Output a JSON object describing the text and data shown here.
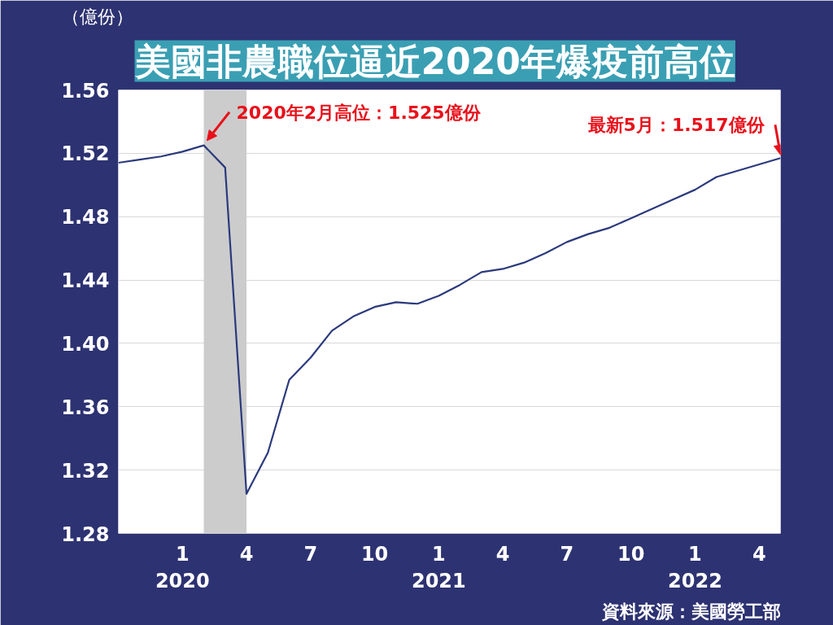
{
  "chart_data": {
    "type": "line",
    "title": "美國非農職位逼近2020年爆疫前高位",
    "ylabel": "（億份）",
    "x": [
      "2019-10",
      "2019-11",
      "2019-12",
      "2020-01",
      "2020-02",
      "2020-03",
      "2020-04",
      "2020-05",
      "2020-06",
      "2020-07",
      "2020-08",
      "2020-09",
      "2020-10",
      "2020-11",
      "2020-12",
      "2021-01",
      "2021-02",
      "2021-03",
      "2021-04",
      "2021-05",
      "2021-06",
      "2021-07",
      "2021-08",
      "2021-09",
      "2021-10",
      "2021-11",
      "2021-12",
      "2022-01",
      "2022-02",
      "2022-03",
      "2022-04",
      "2022-05"
    ],
    "series": [
      {
        "color": "#2b3a7c",
        "values": [
          1.514,
          1.516,
          1.518,
          1.521,
          1.525,
          1.511,
          1.305,
          1.331,
          1.377,
          1.391,
          1.408,
          1.417,
          1.423,
          1.426,
          1.425,
          1.43,
          1.437,
          1.445,
          1.447,
          1.451,
          1.457,
          1.464,
          1.469,
          1.473,
          1.479,
          1.485,
          1.491,
          1.497,
          1.505,
          1.509,
          1.513,
          1.517
        ]
      }
    ],
    "xlim": [
      "2019-10",
      "2022-05"
    ],
    "xticks": [
      {
        "value": "2020-01",
        "label": "1\n2020"
      },
      {
        "value": "2020-04",
        "label": "4"
      },
      {
        "value": "2020-07",
        "label": "7"
      },
      {
        "value": "2020-10",
        "label": "10"
      },
      {
        "value": "2021-01",
        "label": "1\n2021"
      },
      {
        "value": "2021-04",
        "label": "4"
      },
      {
        "value": "2021-07",
        "label": "7"
      },
      {
        "value": "2021-10",
        "label": "10"
      },
      {
        "value": "2022-01",
        "label": "1\n2022"
      },
      {
        "value": "2022-04",
        "label": "4"
      }
    ],
    "ylim": [
      1.28,
      1.56
    ],
    "yticks": [
      {
        "value": 1.28,
        "label": "1.28"
      },
      {
        "value": 1.32,
        "label": "1.32"
      },
      {
        "value": 1.36,
        "label": "1.36"
      },
      {
        "value": 1.4,
        "label": "1.40"
      },
      {
        "value": 1.44,
        "label": "1.44"
      },
      {
        "value": 1.48,
        "label": "1.48"
      },
      {
        "value": 1.52,
        "label": "1.52"
      },
      {
        "value": 1.56,
        "label": "1.56"
      }
    ],
    "bands": [
      {
        "axis": "x",
        "from": "2020-02",
        "to": "2020-04",
        "color": "#cccccc"
      }
    ],
    "grid": "y",
    "marker": "none",
    "line_style": "solid",
    "annotations": [
      {
        "text": "2020年2月高位：1.525億份",
        "x": "2020-02",
        "y": 1.525
      },
      {
        "text": "最新5月：1.517億份",
        "x": "2022-05",
        "y": 1.517
      },
      "資料來源：美國勞工部"
    ]
  }
}
